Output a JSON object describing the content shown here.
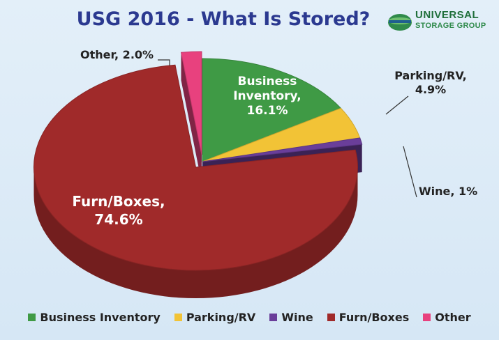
{
  "logo": {
    "line1": "UNIVERSAL",
    "line2": "STORAGE GROUP"
  },
  "chart_data": {
    "type": "pie",
    "title": "USG 2016 - What Is Stored?",
    "three_d": true,
    "legend_position": "bottom",
    "slices": [
      {
        "name": "Business Inventory",
        "value": 16.1,
        "label": [
          "Business",
          "Inventory,",
          "16.1%"
        ],
        "color": "#3f9a45",
        "exploded": false
      },
      {
        "name": "Parking/RV",
        "value": 4.9,
        "label": [
          "Parking/RV,",
          "4.9%"
        ],
        "color": "#f2c336",
        "exploded": false
      },
      {
        "name": "Wine",
        "value": 1,
        "label": [
          "Wine, 1%"
        ],
        "color": "#6a3e9a",
        "exploded": false
      },
      {
        "name": "Furn/Boxes",
        "value": 74.6,
        "label": [
          "Furn/Boxes,",
          "74.6%"
        ],
        "color": "#a02a2a",
        "exploded": true
      },
      {
        "name": "Other",
        "value": 2.0,
        "label": [
          "Other, 2.0%"
        ],
        "color": "#e8417e",
        "exploded": true
      }
    ]
  }
}
